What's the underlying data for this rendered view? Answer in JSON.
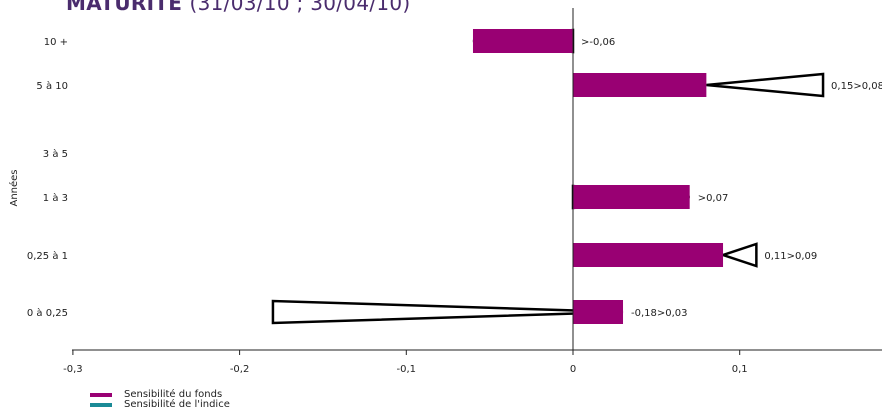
{
  "title_main": "MATURITÉ",
  "title_dates": "(31/03/10 ; 30/04/10)",
  "colors": {
    "fund": "#990073",
    "index": "#1a8a96",
    "title": "#4a2c6d"
  },
  "legend": {
    "fund": "Sensibilité du fonds",
    "index": "Sensibilité de l'indice"
  },
  "chart_data": {
    "type": "bar",
    "orientation": "horizontal",
    "ylabel": "Années",
    "xlim": [
      -0.3,
      0.19
    ],
    "x_ticks": [
      -0.3,
      -0.2,
      -0.1,
      0,
      0.1
    ],
    "x_tick_labels": [
      "-0,3",
      "-0,2",
      "-0,1",
      "0",
      "0,1"
    ],
    "categories": [
      "10 +",
      "5 à 10",
      "3 à 5",
      "1 à 3",
      "0,25 à 1",
      "0 à 0,25"
    ],
    "series": [
      {
        "name": "Sensibilité du fonds",
        "values": [
          -0.06,
          0.08,
          0,
          0.07,
          0.09,
          0.03
        ]
      },
      {
        "name": "Sensibilité de l'indice",
        "from": [
          0,
          0.15,
          null,
          0,
          0.11,
          -0.18
        ],
        "to": [
          -0.06,
          0.08,
          null,
          0.07,
          0.09,
          0.03
        ]
      }
    ],
    "data_labels": [
      ">-0,06",
      "0,15>0,08",
      "",
      ">0,07",
      "0,11>0,09",
      "-0,18>0,03"
    ]
  }
}
